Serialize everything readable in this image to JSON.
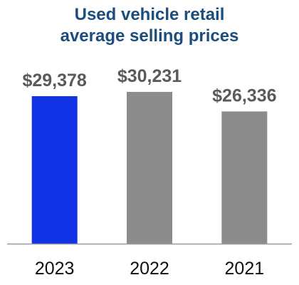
{
  "chart_data": {
    "type": "bar",
    "title": [
      "Used vehicle retail",
      "average selling prices"
    ],
    "categories": [
      "2023",
      "2022",
      "2021"
    ],
    "values": [
      29378,
      30231,
      26336
    ],
    "value_labels": [
      "$29,378",
      "$30,231",
      "$26,336"
    ],
    "colors": [
      "#1232e6",
      "#8c8c8c",
      "#8c8c8c"
    ],
    "ylim": [
      0,
      31500
    ],
    "grid": false,
    "legend": "none"
  },
  "colors": {
    "title": "#1b4e7e",
    "axis": "#9a9a9a"
  }
}
